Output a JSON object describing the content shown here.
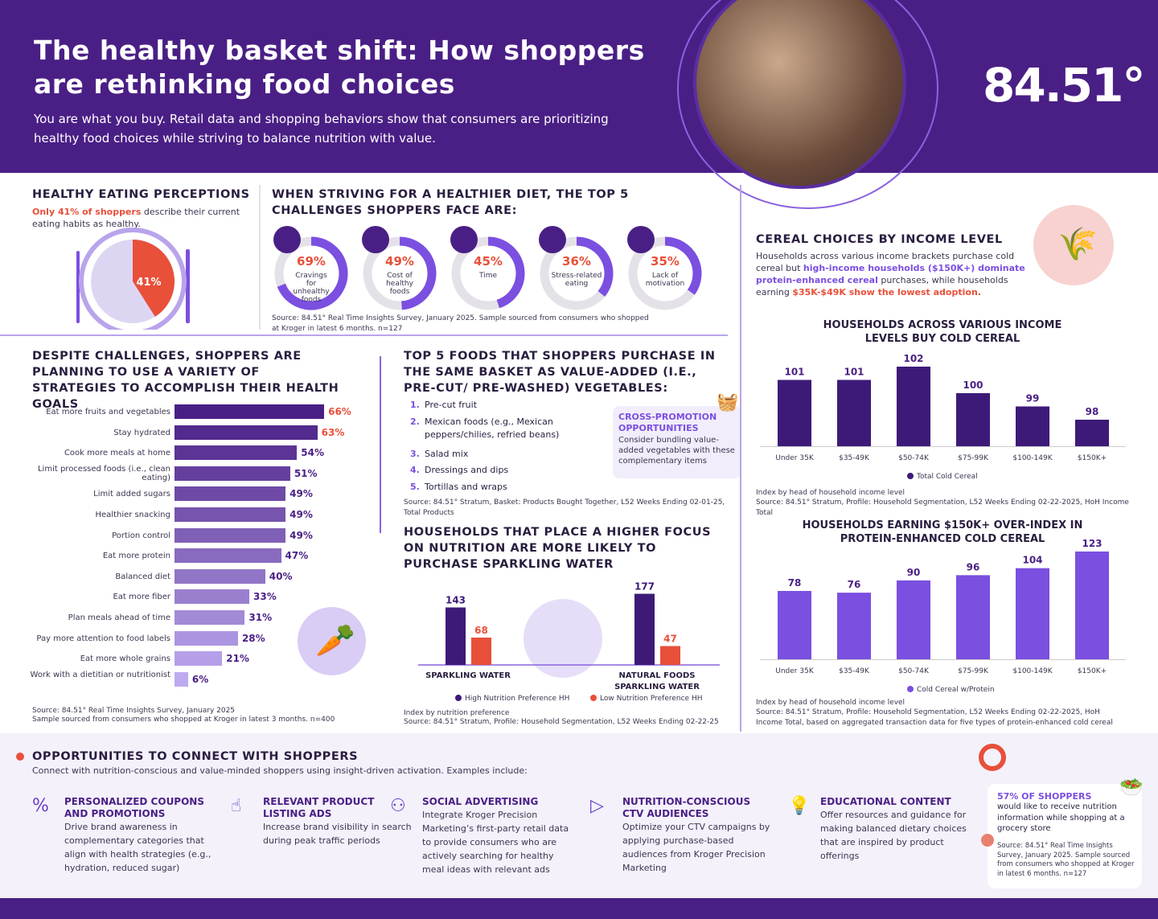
{
  "header": {
    "title": "The healthy basket shift: How shoppers are rethinking food choices",
    "subtitle": "You are what you buy. Retail data and shopping behaviors show that consumers are prioritizing healthy food choices while striving to balance nutrition with value.",
    "logo": "84.51°"
  },
  "perceptions": {
    "heading": "HEALTHY EATING PERCEPTIONS",
    "highlight": "Only 41% of shoppers",
    "text": " describe their current eating habits as healthy."
  },
  "challenges": {
    "heading": "WHEN STRIVING FOR A HEALTHIER DIET, THE TOP 5 CHALLENGES SHOPPERS FACE ARE:",
    "source": "Source: 84.51° Real Time Insights Survey, January 2025. Sample sourced from consumers who shopped at Kroger in latest 6 months. n=127",
    "icons": [
      "pizza-icon",
      "price-tag-icon",
      "clock-icon",
      "heart-pulse-icon",
      "thumbs-down-icon"
    ]
  },
  "strategies": {
    "heading": "DESPITE CHALLENGES, SHOPPERS ARE PLANNING TO USE A VARIETY OF STRATEGIES TO ACCOMPLISH THEIR HEALTH GOALS",
    "source": "Source: 84.51° Real Time Insights Survey, January 2025",
    "source2": "Sample sourced from consumers who shopped at Kroger in  latest 3 months. n=400"
  },
  "foods": {
    "heading": "TOP 5 FOODS THAT SHOPPERS PURCHASE IN THE SAME BASKET AS VALUE-ADDED (I.E., PRE-CUT/ PRE-WASHED) VEGETABLES:",
    "items": [
      {
        "n": "1.",
        "t": "Pre-cut fruit"
      },
      {
        "n": "2.",
        "t": "Mexican foods (e.g., Mexican peppers/chilies, refried beans)"
      },
      {
        "n": "3.",
        "t": "Salad mix"
      },
      {
        "n": "4.",
        "t": "Dressings and dips"
      },
      {
        "n": "5.",
        "t": "Tortillas and wraps"
      }
    ],
    "source": "Source: 84.51° Stratum, Basket: Products Bought Together, L52 Weeks Ending 02-01-25, Total Products",
    "callout_title": "CROSS-PROMOTION OPPORTUNITIES",
    "callout_text": "Consider bundling value-added vegetables with these complementary items"
  },
  "sparkling": {
    "heading": "HOUSEHOLDS THAT PLACE A HIGHER FOCUS ON NUTRITION ARE MORE LIKELY TO PURCHASE SPARKLING WATER",
    "note": "Index by nutrition preference",
    "source": "Source: 84.51° Stratum, Profile: Household Segmentation, L52 Weeks Ending 02-22-25"
  },
  "cereal": {
    "heading": "CEREAL CHOICES BY INCOME LEVEL",
    "t1": "Households across various income brackets purchase cold cereal but ",
    "t2": "high-income households ($150K+) dominate protein-enhanced cereal",
    "t3": " purchases, while households earning ",
    "t4": "$35K-$49K show the lowest adoption.",
    "note1": "Index by head of household income level",
    "source1": "Source: 84.51° Stratum, Profile: Household Segmentation, L52 Weeks Ending 02-22-2025, HoH Income Total",
    "note2": "Index by head of household income level",
    "source2": "Source: 84.51° Stratum, Profile: Household Segmentation, L52 Weeks Ending 02-22-2025, HoH Income Total, based on aggregated transaction data for five types of protein-enhanced cold cereal"
  },
  "opportunities": {
    "heading": "OPPORTUNITIES TO CONNECT WITH SHOPPERS",
    "subtitle": "Connect with nutrition-conscious and value-minded shoppers using insight-driven activation. Examples include:",
    "items": [
      {
        "icon": "coupon-icon",
        "title": "PERSONALIZED COUPONS AND PROMOTIONS",
        "text": "Drive brand awareness in complementary categories that align with health strategies (e.g., hydration, reduced sugar)"
      },
      {
        "icon": "tap-icon",
        "title": "RELEVANT PRODUCT LISTING ADS",
        "text": "Increase brand visibility in search during peak traffic periods"
      },
      {
        "icon": "social-icon",
        "title": "SOCIAL ADVERTISING",
        "text": "Integrate Kroger Precision Marketing’s first-party retail data to provide consumers who are actively searching for healthy meal ideas with relevant ads"
      },
      {
        "icon": "tv-icon",
        "title": "NUTRITION-CONSCIOUS CTV AUDIENCES",
        "text": "Optimize your CTV campaigns by applying purchase-based audiences from Kroger Precision Marketing"
      },
      {
        "icon": "lightbulb-icon",
        "title": "EDUCATIONAL CONTENT",
        "text": "Offer resources and guidance for making balanced dietary choices that are inspired by product offerings"
      }
    ],
    "stat_title": "57% OF SHOPPERS",
    "stat_text": "would like to receive nutrition information while shopping at a grocery store",
    "stat_source": "Source: 84.51° Real Time Insights Survey, January 2025. Sample sourced from consumers who shopped at Kroger in latest 6 months. n=127"
  },
  "colors": {
    "dark_purple": "#4a1f85",
    "purple": "#7b4fe0",
    "red": "#e8503a",
    "light_gray": "#e4e2e8"
  },
  "chart_data": [
    {
      "type": "pie",
      "values": [
        41,
        59
      ],
      "labels": [
        "41%",
        ""
      ],
      "colors": [
        "#e8503a",
        "#ddd6f3"
      ]
    },
    {
      "type": "donut",
      "categories": [
        "Cravings for unhealthy foods",
        "Cost of healthy foods",
        "Time",
        "Stress-related eating",
        "Lack of motivation"
      ],
      "values": [
        69,
        49,
        45,
        36,
        35
      ],
      "labels": [
        "69%",
        "49%",
        "45%",
        "36%",
        "35%"
      ]
    },
    {
      "type": "bar",
      "orientation": "horizontal",
      "categories": [
        "Eat more fruits and vegetables",
        "Stay hydrated",
        "Cook more meals at home",
        "Limit processed foods (i.e., clean eating)",
        "Limit added sugars",
        "Healthier snacking",
        "Portion control",
        "Eat more protein",
        "Balanced diet",
        "Eat more fiber",
        "Plan meals ahead of time",
        "Pay more attention to food labels",
        "Eat more whole grains",
        "Work with a dietitian or nutritionist"
      ],
      "values": [
        66,
        63,
        54,
        51,
        49,
        49,
        49,
        47,
        40,
        33,
        31,
        28,
        21,
        6
      ],
      "labels": [
        "66%",
        "63%",
        "54%",
        "51%",
        "49%",
        "49%",
        "49%",
        "47%",
        "40%",
        "33%",
        "31%",
        "28%",
        "21%",
        "6%"
      ]
    },
    {
      "type": "bar",
      "categories": [
        "SPARKLING WATER",
        "NATURAL FOODS SPARKLING WATER"
      ],
      "series": [
        {
          "name": "High Nutrition Preference HH",
          "values": [
            143,
            177
          ],
          "color": "#3d1a78"
        },
        {
          "name": "Low Nutrition Preference HH",
          "values": [
            68,
            47
          ],
          "color": "#e8503a"
        }
      ]
    },
    {
      "type": "bar",
      "title": "HOUSEHOLDS ACROSS VARIOUS INCOME LEVELS BUY COLD CEREAL",
      "categories": [
        "Under 35K",
        "$35-49K",
        "$50-74K",
        "$75-99K",
        "$100-149K",
        "$150K+"
      ],
      "series": [
        {
          "name": "Total Cold Cereal",
          "values": [
            101,
            101,
            102,
            100,
            99,
            98
          ],
          "color": "#3d1a78"
        }
      ]
    },
    {
      "type": "bar",
      "title": "HOUSEHOLDS EARNING $150K+ OVER-INDEX IN PROTEIN-ENHANCED COLD CEREAL",
      "categories": [
        "Under 35K",
        "$35-49K",
        "$50-74K",
        "$75-99K",
        "$100-149K",
        "$150K+"
      ],
      "series": [
        {
          "name": "Cold Cereal w/Protein",
          "values": [
            78,
            76,
            90,
            96,
            104,
            123
          ],
          "color": "#7b4fe0"
        }
      ]
    }
  ]
}
